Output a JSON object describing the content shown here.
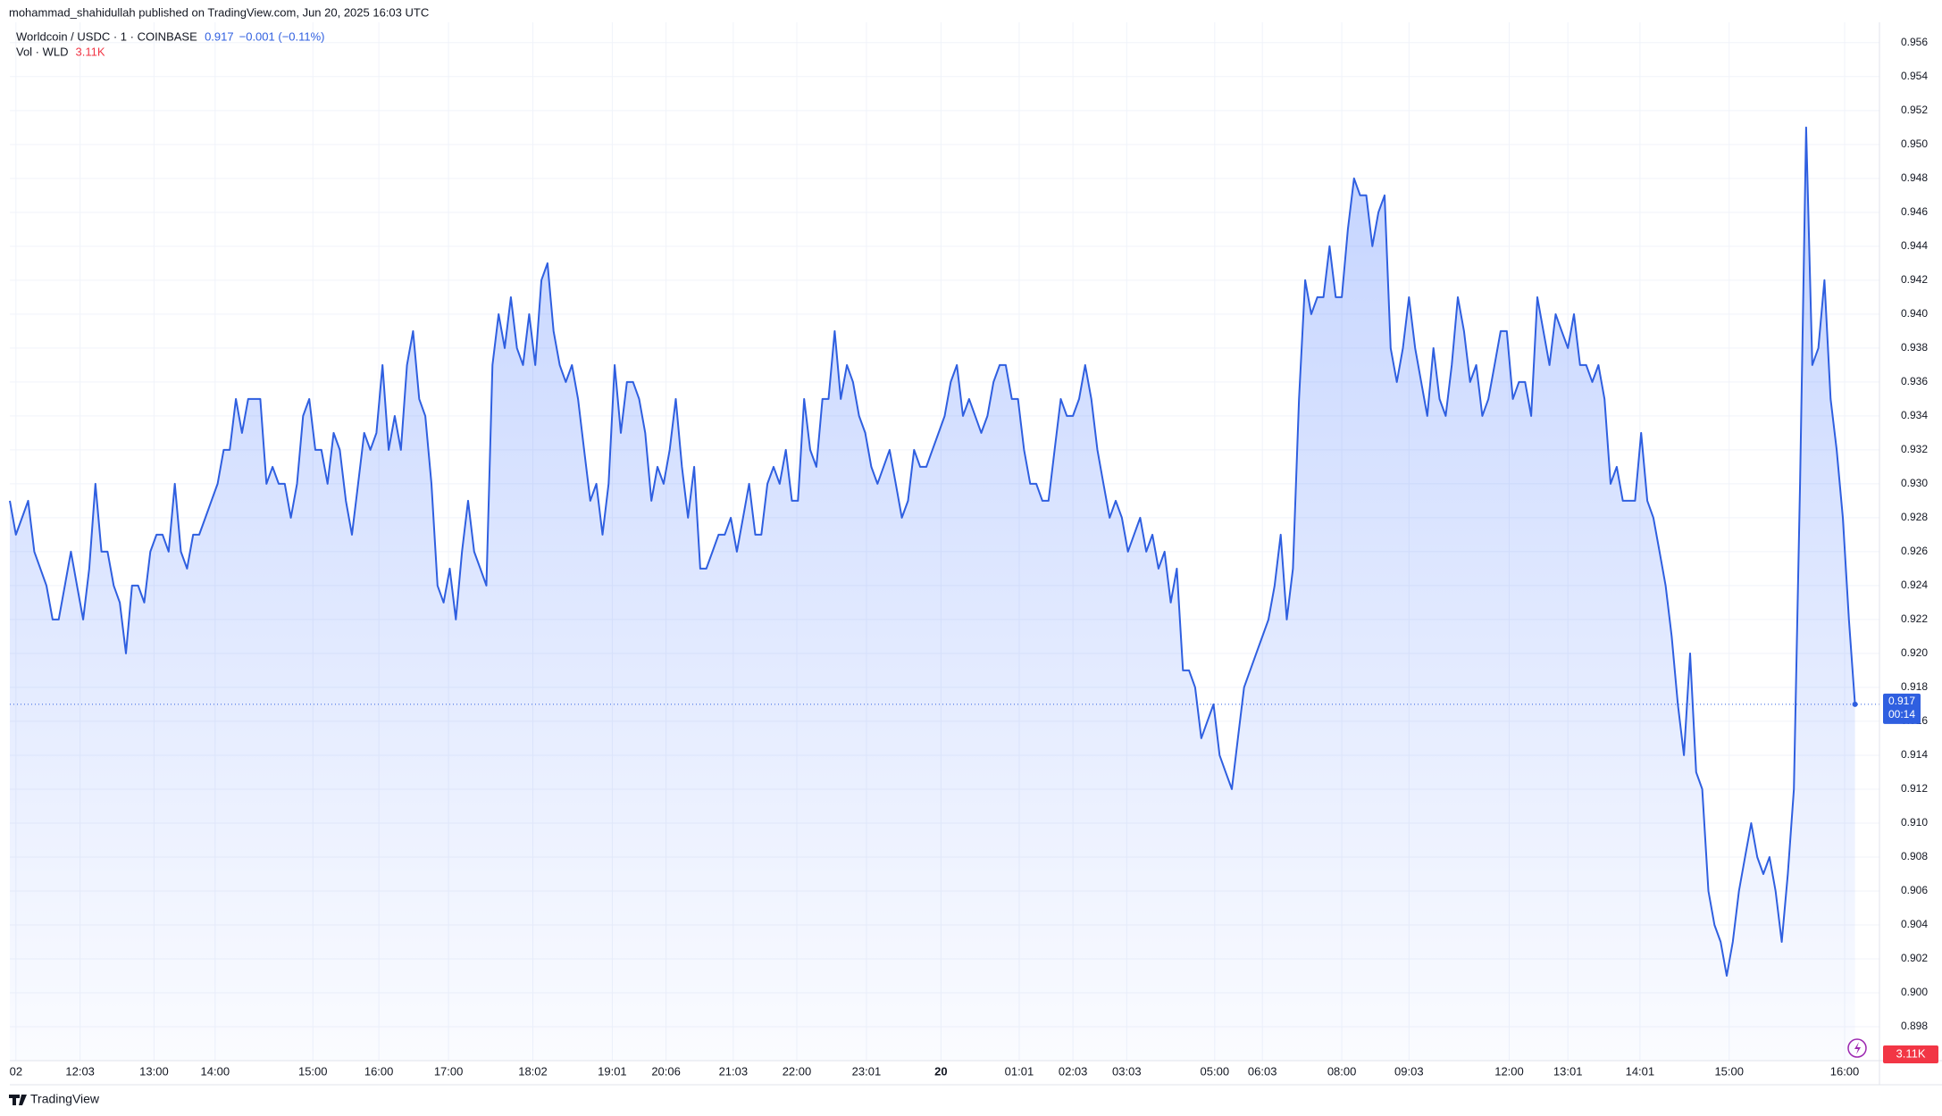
{
  "chart_data": {
    "type": "area",
    "header": "mohammad_shahidullah published on TradingView.com, Jun 20, 2025 16:03 UTC",
    "change": "−0.001 (−0.11%)",
    "volume_label": "Vol · WLD",
    "volume_value": "3.11K",
    "countdown": "00:14",
    "brand": "TradingView",
    "grid": true,
    "series": [
      {
        "name": "Worldcoin / USDC · 1 · COINBASE",
        "color": "#2f5fe0",
        "values": [
          0.929,
          0.927,
          0.928,
          0.929,
          0.926,
          0.925,
          0.924,
          0.922,
          0.922,
          0.924,
          0.926,
          0.924,
          0.922,
          0.925,
          0.93,
          0.926,
          0.926,
          0.924,
          0.923,
          0.92,
          0.924,
          0.924,
          0.923,
          0.926,
          0.927,
          0.927,
          0.926,
          0.93,
          0.926,
          0.925,
          0.927,
          0.927,
          0.928,
          0.929,
          0.93,
          0.932,
          0.932,
          0.935,
          0.933,
          0.935,
          0.935,
          0.935,
          0.93,
          0.931,
          0.93,
          0.93,
          0.928,
          0.93,
          0.934,
          0.935,
          0.932,
          0.932,
          0.93,
          0.933,
          0.932,
          0.929,
          0.927,
          0.93,
          0.933,
          0.932,
          0.933,
          0.937,
          0.932,
          0.934,
          0.932,
          0.937,
          0.939,
          0.935,
          0.934,
          0.93,
          0.924,
          0.923,
          0.925,
          0.922,
          0.926,
          0.929,
          0.926,
          0.925,
          0.924,
          0.937,
          0.94,
          0.938,
          0.941,
          0.938,
          0.937,
          0.94,
          0.937,
          0.942,
          0.943,
          0.939,
          0.937,
          0.936,
          0.937,
          0.935,
          0.932,
          0.929,
          0.93,
          0.927,
          0.93,
          0.937,
          0.933,
          0.936,
          0.936,
          0.935,
          0.933,
          0.929,
          0.931,
          0.93,
          0.932,
          0.935,
          0.931,
          0.928,
          0.931,
          0.925,
          0.925,
          0.926,
          0.927,
          0.927,
          0.928,
          0.926,
          0.928,
          0.93,
          0.927,
          0.927,
          0.93,
          0.931,
          0.93,
          0.932,
          0.929,
          0.929,
          0.935,
          0.932,
          0.931,
          0.935,
          0.935,
          0.939,
          0.935,
          0.937,
          0.936,
          0.934,
          0.933,
          0.931,
          0.93,
          0.931,
          0.932,
          0.93,
          0.928,
          0.929,
          0.932,
          0.931,
          0.931,
          0.932,
          0.933,
          0.934,
          0.936,
          0.937,
          0.934,
          0.935,
          0.934,
          0.933,
          0.934,
          0.936,
          0.937,
          0.937,
          0.935,
          0.935,
          0.932,
          0.93,
          0.93,
          0.929,
          0.929,
          0.932,
          0.935,
          0.934,
          0.934,
          0.935,
          0.937,
          0.935,
          0.932,
          0.93,
          0.928,
          0.929,
          0.928,
          0.926,
          0.927,
          0.928,
          0.926,
          0.927,
          0.925,
          0.926,
          0.923,
          0.925,
          0.919,
          0.919,
          0.918,
          0.915,
          0.916,
          0.917,
          0.914,
          0.913,
          0.912,
          0.915,
          0.918,
          0.919,
          0.92,
          0.921,
          0.922,
          0.924,
          0.927,
          0.922,
          0.925,
          0.935,
          0.942,
          0.94,
          0.941,
          0.941,
          0.944,
          0.941,
          0.941,
          0.945,
          0.948,
          0.947,
          0.947,
          0.944,
          0.946,
          0.947,
          0.938,
          0.936,
          0.938,
          0.941,
          0.938,
          0.936,
          0.934,
          0.938,
          0.935,
          0.934,
          0.937,
          0.941,
          0.939,
          0.936,
          0.937,
          0.934,
          0.935,
          0.937,
          0.939,
          0.939,
          0.935,
          0.936,
          0.936,
          0.934,
          0.941,
          0.939,
          0.937,
          0.94,
          0.939,
          0.938,
          0.94,
          0.937,
          0.937,
          0.936,
          0.937,
          0.935,
          0.93,
          0.931,
          0.929,
          0.929,
          0.929,
          0.933,
          0.929,
          0.928,
          0.926,
          0.924,
          0.921,
          0.917,
          0.914,
          0.92,
          0.913,
          0.912,
          0.906,
          0.904,
          0.903,
          0.901,
          0.903,
          0.906,
          0.908,
          0.91,
          0.908,
          0.907,
          0.908,
          0.906,
          0.903,
          0.907,
          0.912,
          0.93,
          0.951,
          0.937,
          0.938,
          0.942,
          0.935,
          0.932,
          0.928,
          0.922,
          0.917
        ]
      }
    ],
    "xlim": [
      0,
      306
    ],
    "xticks": [
      {
        "value": 1,
        "label": "02"
      },
      {
        "value": 11.5,
        "label": "12:03"
      },
      {
        "value": 23.6,
        "label": "13:00"
      },
      {
        "value": 33.6,
        "label": "14:00"
      },
      {
        "value": 49.6,
        "label": "15:00"
      },
      {
        "value": 60.4,
        "label": "16:00"
      },
      {
        "value": 71.8,
        "label": "17:00"
      },
      {
        "value": 85.6,
        "label": "18:02"
      },
      {
        "value": 98.6,
        "label": "19:01"
      },
      {
        "value": 107.4,
        "label": "20:06"
      },
      {
        "value": 118.4,
        "label": "21:03"
      },
      {
        "value": 128.8,
        "label": "22:00"
      },
      {
        "value": 140.2,
        "label": "23:01"
      },
      {
        "value": 152.4,
        "label": "20"
      },
      {
        "value": 165.2,
        "label": "01:01"
      },
      {
        "value": 174,
        "label": "02:03"
      },
      {
        "value": 182.8,
        "label": "03:03"
      },
      {
        "value": 197.2,
        "label": "05:00"
      },
      {
        "value": 205,
        "label": "06:03"
      },
      {
        "value": 218,
        "label": "08:00"
      },
      {
        "value": 229,
        "label": "09:03"
      },
      {
        "value": 245.4,
        "label": "12:00"
      },
      {
        "value": 255,
        "label": "13:01"
      },
      {
        "value": 266.8,
        "label": "14:01"
      },
      {
        "value": 281.4,
        "label": "15:00"
      },
      {
        "value": 300.3,
        "label": "16:00"
      }
    ],
    "ylim": [
      0.896,
      0.9572
    ],
    "yticks": [
      0.898,
      {
        "value": 0.9,
        "label": "0.900"
      },
      0.902,
      0.904,
      0.906,
      0.908,
      {
        "value": 0.91,
        "label": "0.910"
      },
      0.912,
      0.914,
      0.916,
      0.918,
      {
        "value": 0.92,
        "label": "0.920"
      },
      0.922,
      0.924,
      0.926,
      0.928,
      {
        "value": 0.93,
        "label": "0.930"
      },
      0.932,
      0.934,
      0.936,
      0.938,
      {
        "value": 0.94,
        "label": "0.940"
      },
      0.942,
      0.944,
      0.946,
      0.948,
      {
        "value": 0.95,
        "label": "0.950"
      },
      0.952,
      0.954,
      0.956
    ]
  }
}
